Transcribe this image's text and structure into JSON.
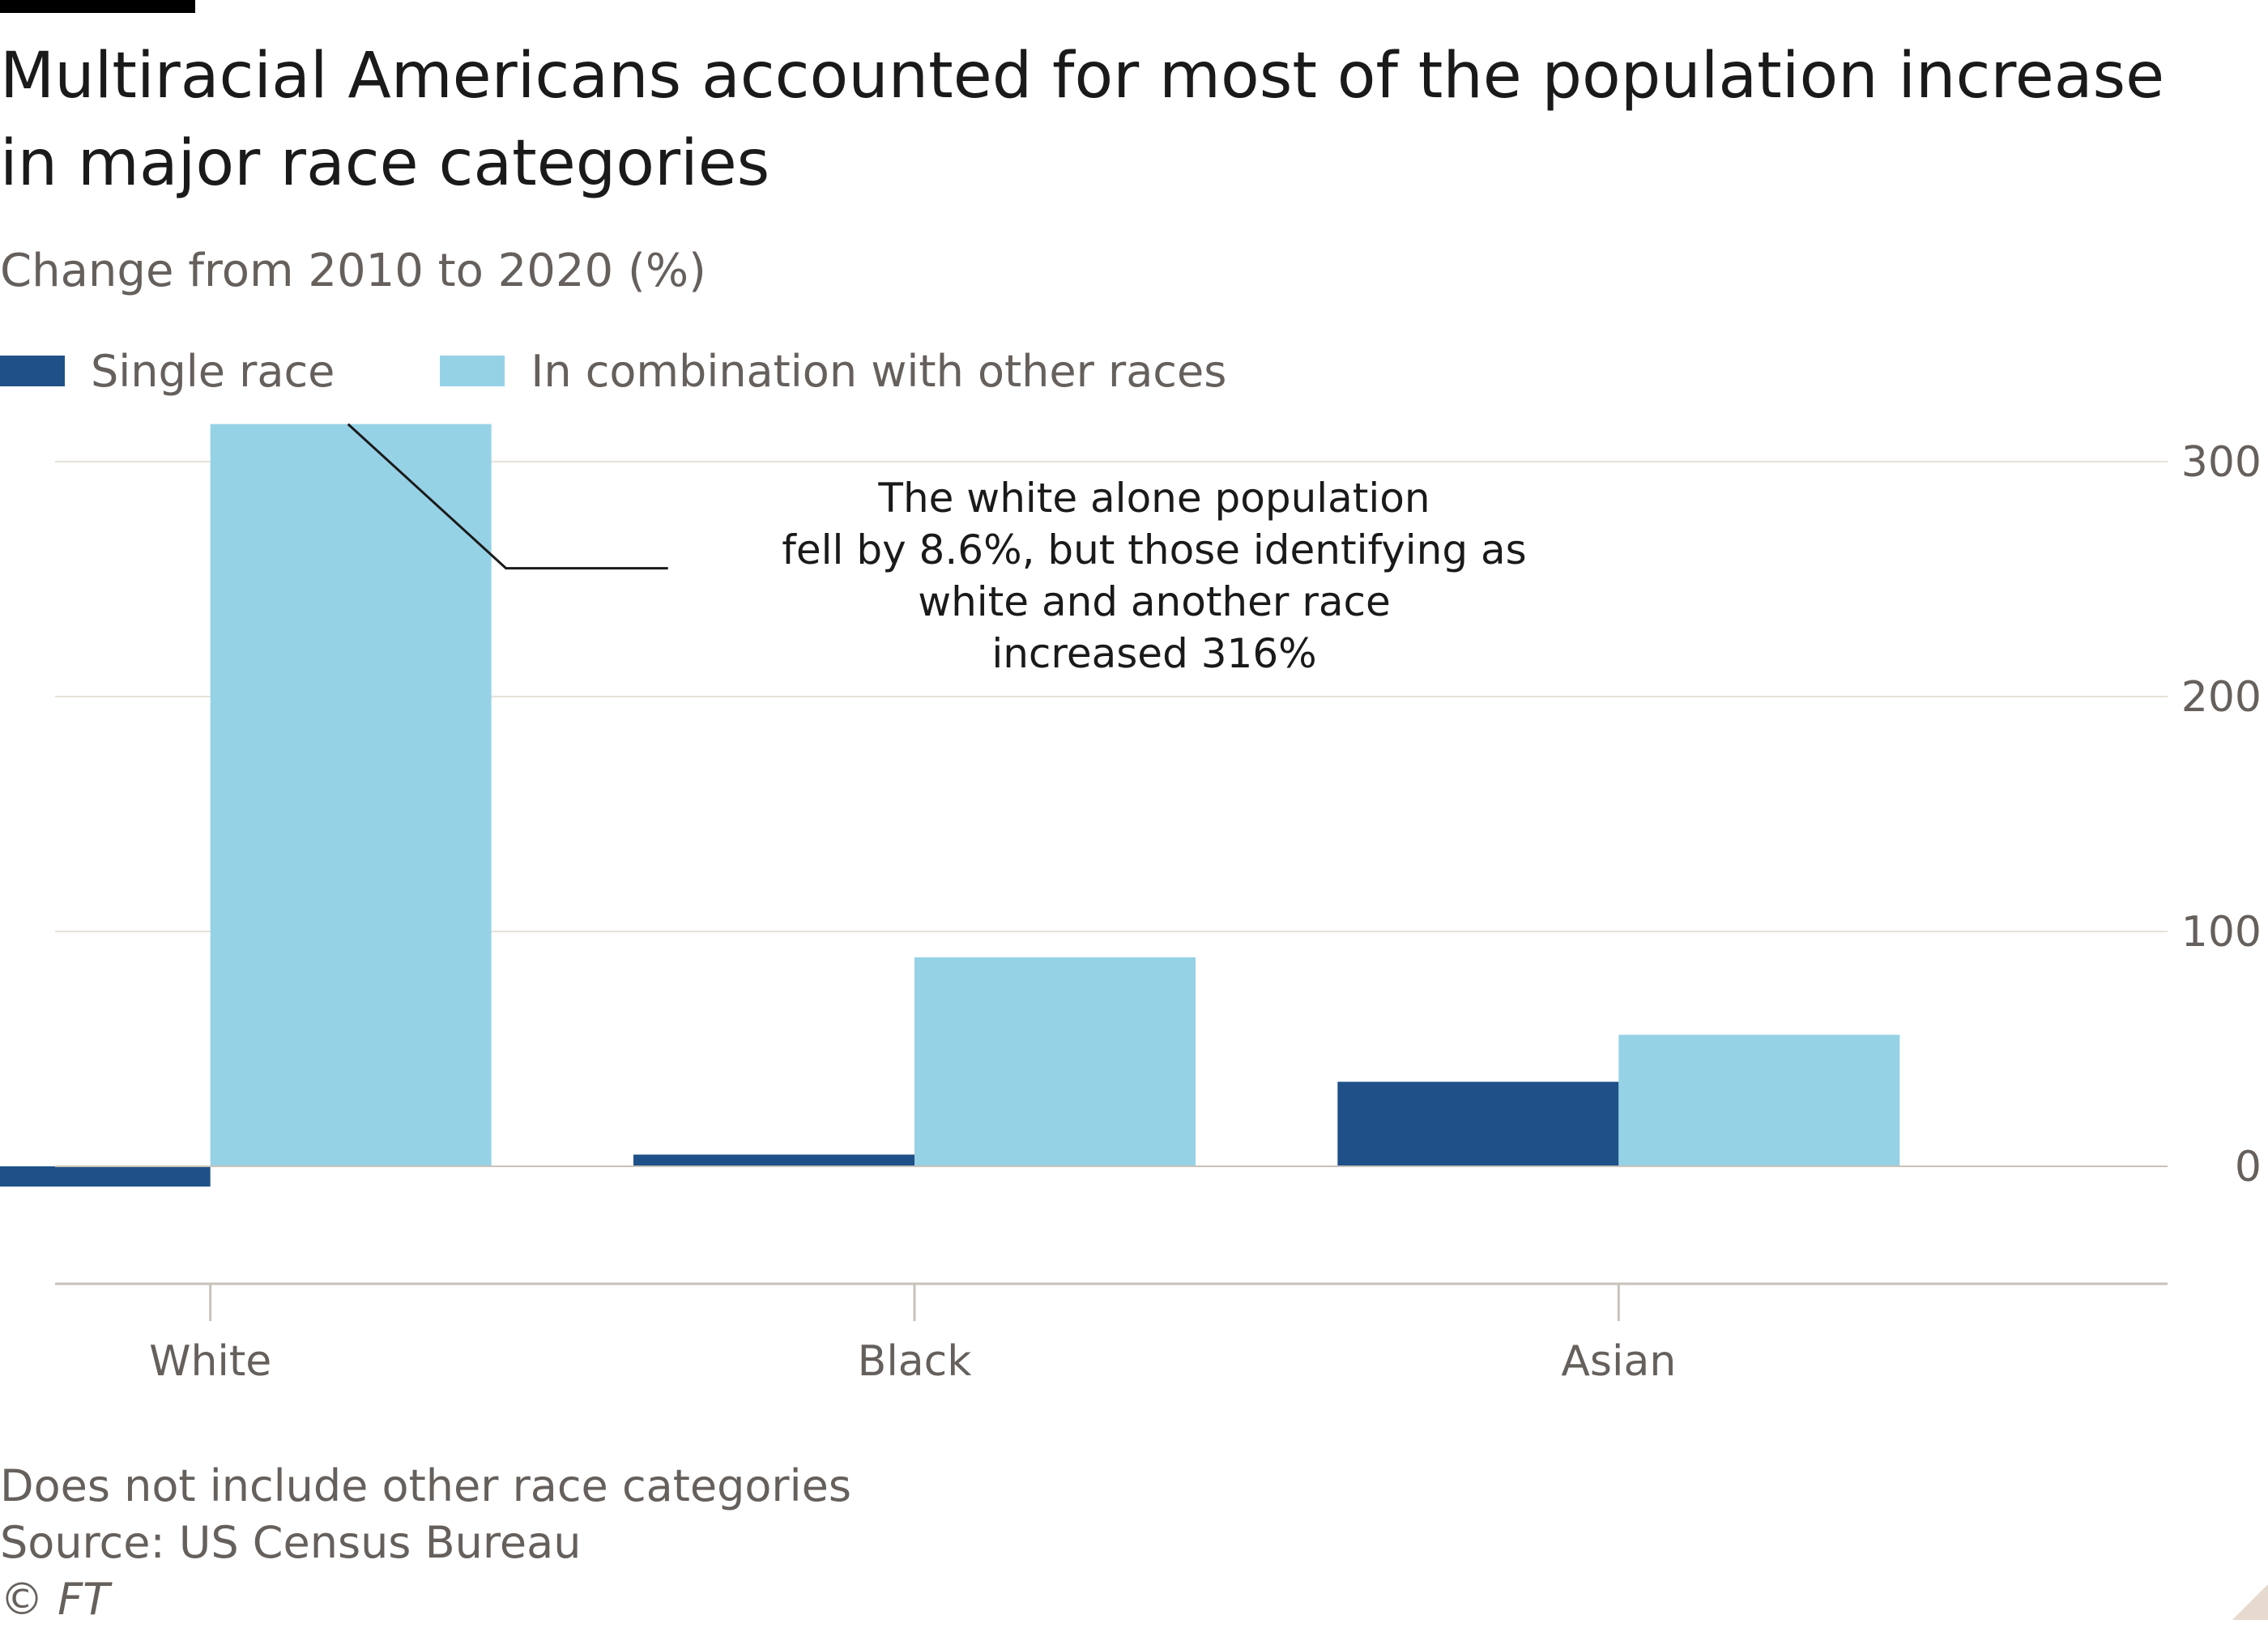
{
  "title": "Multiracial Americans accounted for most of the population increase in major race categories",
  "subtitle": "Change from 2010 to 2020 (%)",
  "legend": {
    "single": "Single race",
    "combo": "In combination with other races"
  },
  "colors": {
    "single": "#1f5188",
    "combo": "#96d2e6",
    "grid": "#e6e1da",
    "text": "#66605c"
  },
  "chart_data": {
    "type": "bar",
    "categories": [
      "White",
      "Black",
      "Asian"
    ],
    "series": [
      {
        "name": "Single race",
        "values": [
          -8.6,
          5,
          36
        ]
      },
      {
        "name": "In combination with other races",
        "values": [
          316,
          89,
          56
        ]
      }
    ],
    "ylim": [
      -50,
      320
    ],
    "yticks": [
      0,
      100,
      200,
      300
    ],
    "yaxis_position": "right",
    "grid": true,
    "legend_position": "top-left",
    "annotation": {
      "lines": [
        "The white alone population",
        "fell by 8.6%, but those identifying as",
        "white and another race",
        "increased 316%"
      ],
      "target_category": "White",
      "target_series": "In combination with other races"
    }
  },
  "footer": {
    "note": "Does not include other race categories",
    "source": "Source: US Census Bureau",
    "copyright": "© FT"
  }
}
